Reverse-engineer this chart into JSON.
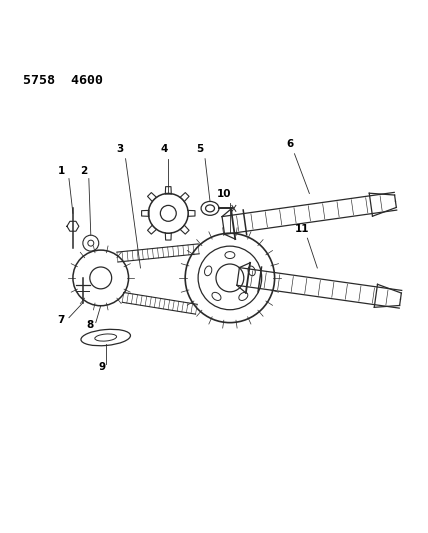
{
  "title": "5758  4600",
  "bg_color": "#ffffff",
  "line_color": "#2a2a2a",
  "label_color": "#000000",
  "fig_width": 4.28,
  "fig_height": 5.33,
  "dpi": 100
}
